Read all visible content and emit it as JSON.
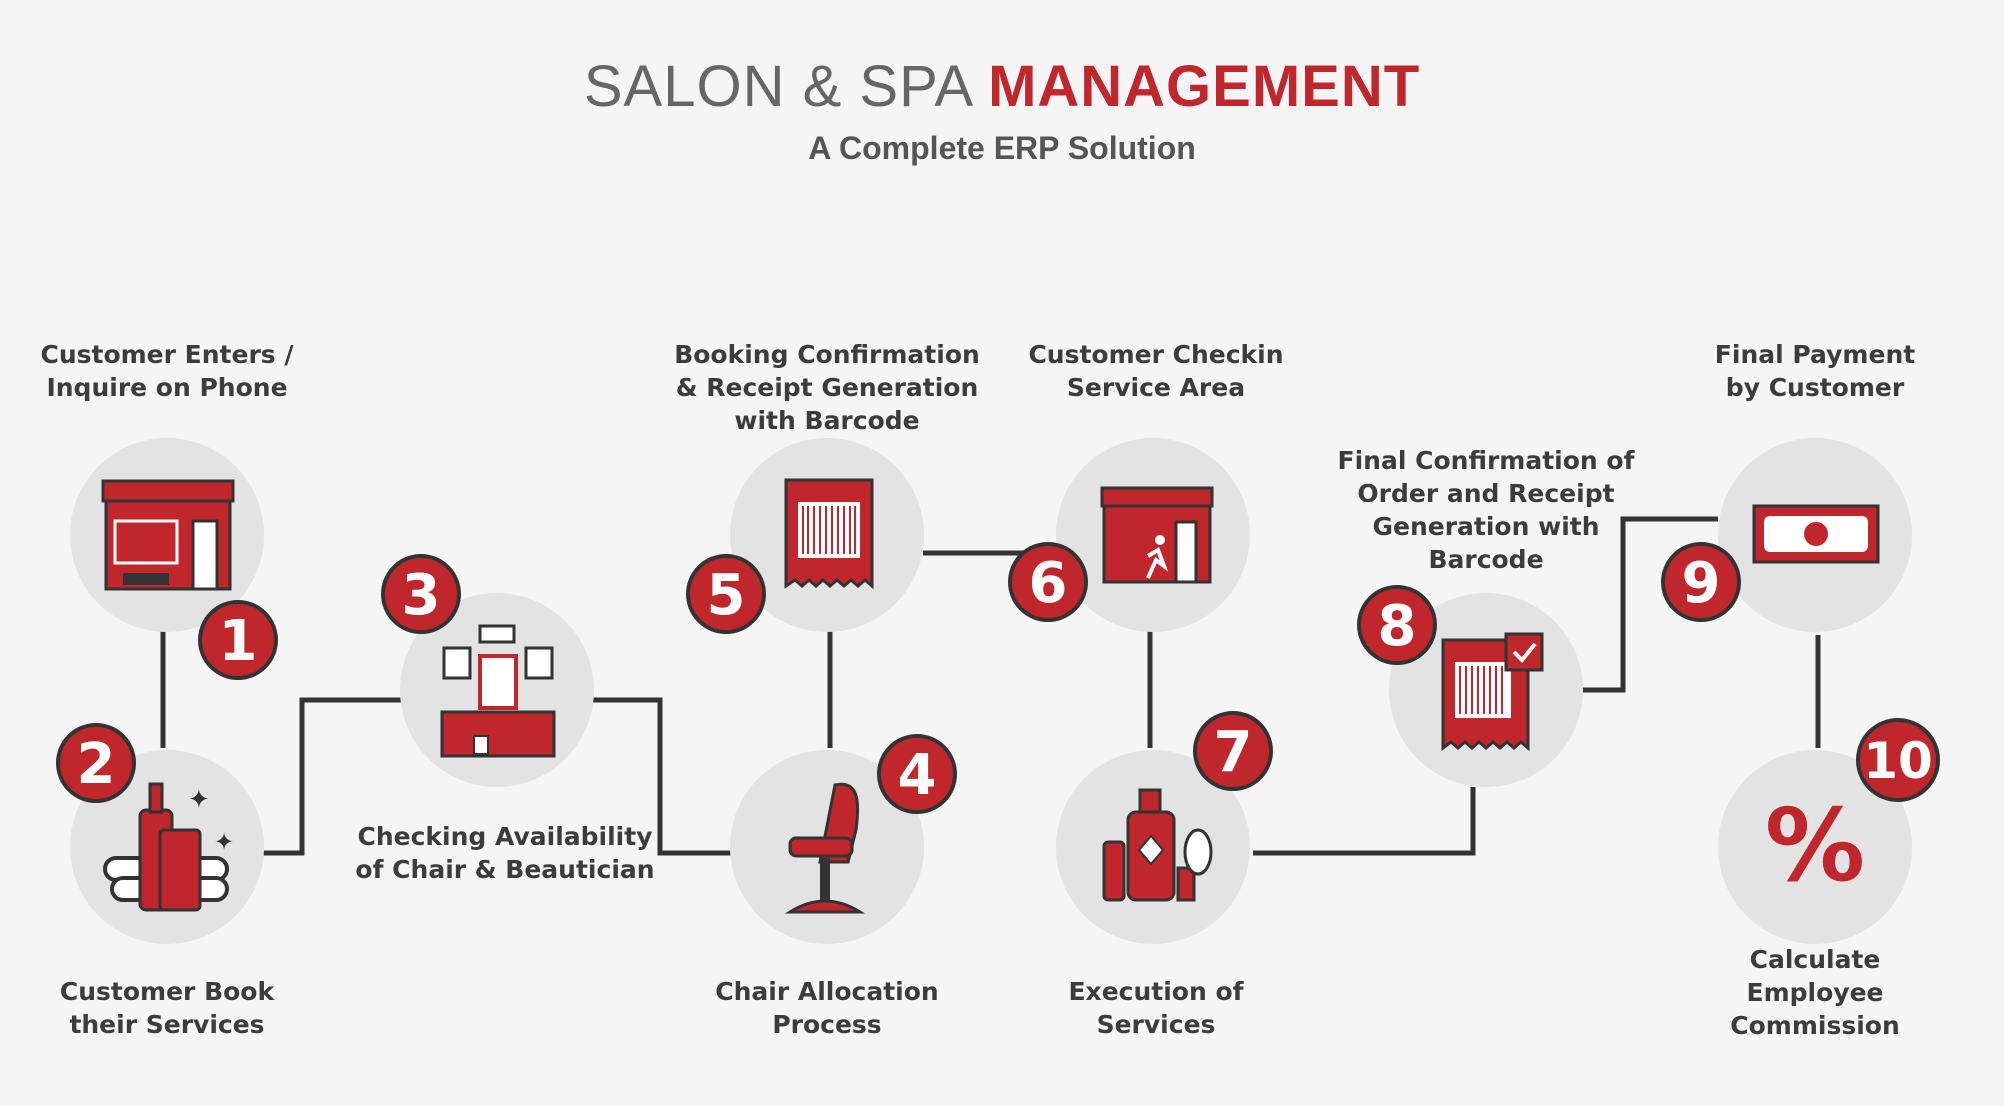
{
  "header": {
    "title_plain": "SALON & SPA",
    "title_accent": "MANAGEMENT",
    "subtitle": "A Complete ERP Solution"
  },
  "colors": {
    "accent": "#c0272d",
    "circle": "#e3e3e3",
    "line": "#333333",
    "background": "#f5f5f5"
  },
  "steps": [
    {
      "number": "1",
      "label": "Customer Enters /\nInquire on Phone",
      "icon": "storefront-icon"
    },
    {
      "number": "2",
      "label": "Customer Book\ntheir Services",
      "icon": "spa-products-icon"
    },
    {
      "number": "3",
      "label": "Checking Availability\nof Chair & Beautician",
      "icon": "salon-station-icon"
    },
    {
      "number": "4",
      "label": "Chair Allocation\nProcess",
      "icon": "salon-chair-icon"
    },
    {
      "number": "5",
      "label": "Booking Confirmation\n& Receipt Generation\nwith Barcode",
      "icon": "barcode-receipt-icon"
    },
    {
      "number": "6",
      "label": "Customer Checkin\nService Area",
      "icon": "store-entry-icon"
    },
    {
      "number": "7",
      "label": "Execution of\nServices",
      "icon": "grooming-tools-icon"
    },
    {
      "number": "8",
      "label": "Final Confirmation of\nOrder and Receipt\nGeneration with\nBarcode",
      "icon": "confirmed-receipt-icon"
    },
    {
      "number": "9",
      "label": "Final Payment\nby Customer",
      "icon": "cash-icon"
    },
    {
      "number": "10",
      "label": "Calculate\nEmployee\nCommission",
      "icon": "percent-icon"
    }
  ]
}
